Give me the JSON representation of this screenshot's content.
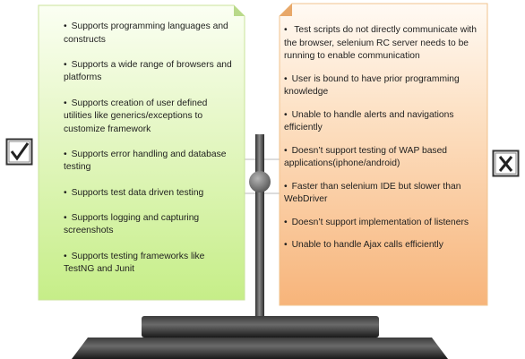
{
  "pros": {
    "icon": "check-mark-icon",
    "items": [
      "Supports  programming languages and constructs",
      "Supports  a wide range of browsers and platforms",
      "Supports  creation of user defined utilities like generics/exceptions to customize framework",
      "Supports  error handling and database testing",
      "Supports  test data driven testing",
      "Supports  logging and capturing screenshots",
      "Supports  testing frameworks like TestNG and Junit"
    ],
    "color": "#dff5b8"
  },
  "cons": {
    "icon": "x-mark-icon",
    "items": [
      " Test scripts do not directly communicate with the browser, selenium RC server needs to be running to enable communication",
      "User is bound to have prior programming knowledge",
      "Unable to handle alerts and navigations efficiently",
      "Doesn’t support testing of WAP based applications(iphone/android)",
      "Faster than selenium IDE but slower than WebDriver",
      "Doesn’t support implementation of listeners",
      "Unable to handle Ajax calls efficiently"
    ],
    "color": "#fcd8b2"
  }
}
